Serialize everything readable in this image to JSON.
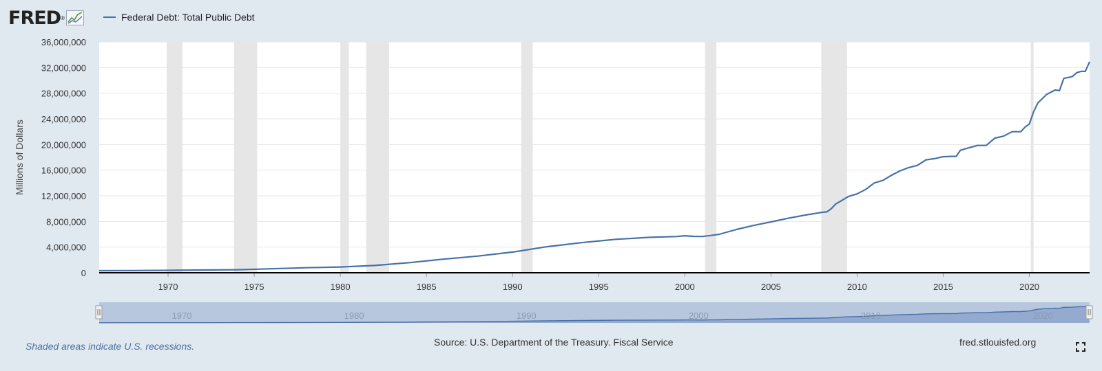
{
  "brand": {
    "logo_text": "FRED",
    "reg_mark": "®"
  },
  "legend": {
    "series_label": "Federal Debt: Total Public Debt",
    "color": "#4572a7"
  },
  "footer": {
    "footnote": "Shaded areas indicate U.S. recessions.",
    "source": "Source: U.S. Department of the Treasury. Fiscal Service",
    "site": "fred.stlouisfed.org"
  },
  "icons": {
    "logo_graph": "chart-line-icon",
    "fullscreen": "fullscreen-icon"
  },
  "chart_data": {
    "type": "line",
    "title": "",
    "xlabel": "",
    "ylabel": "Millions of Dollars",
    "xlim": [
      1966.0,
      2023.5
    ],
    "ylim": [
      0,
      36000000
    ],
    "y_ticks": [
      "0",
      "4,000,000",
      "8,000,000",
      "12,000,000",
      "16,000,000",
      "20,000,000",
      "24,000,000",
      "28,000,000",
      "32,000,000",
      "36,000,000"
    ],
    "x_ticks": [
      "1970",
      "1975",
      "1980",
      "1985",
      "1990",
      "1995",
      "2000",
      "2005",
      "2010",
      "2015",
      "2020"
    ],
    "navigator_ticks": [
      "1970",
      "1980",
      "1990",
      "2000",
      "2010",
      "2020"
    ],
    "grid": true,
    "legend_position": "top-left",
    "recessions": [
      [
        1969.92,
        1970.83
      ],
      [
        1973.83,
        1975.17
      ],
      [
        1980.0,
        1980.5
      ],
      [
        1981.5,
        1982.83
      ],
      [
        1990.5,
        1991.17
      ],
      [
        2001.17,
        2001.83
      ],
      [
        2007.92,
        2009.42
      ],
      [
        2020.08,
        2020.25
      ]
    ],
    "series": [
      {
        "name": "Federal Debt: Total Public Debt",
        "x": [
          1966.0,
          1968.0,
          1970.0,
          1972.0,
          1974.0,
          1976.0,
          1978.0,
          1980.0,
          1982.0,
          1984.0,
          1986.0,
          1988.0,
          1990.0,
          1992.0,
          1994.0,
          1996.0,
          1998.0,
          1999.5,
          2000.0,
          2000.5,
          2001.0,
          2001.5,
          2002.0,
          2003.0,
          2004.0,
          2005.0,
          2006.0,
          2007.0,
          2008.0,
          2008.25,
          2008.5,
          2008.75,
          2009.0,
          2009.5,
          2010.0,
          2010.5,
          2011.0,
          2011.5,
          2012.0,
          2012.5,
          2013.0,
          2013.5,
          2014.0,
          2014.5,
          2015.0,
          2015.5,
          2015.75,
          2016.0,
          2016.5,
          2017.0,
          2017.5,
          2018.0,
          2018.5,
          2019.0,
          2019.5,
          2019.75,
          2020.0,
          2020.25,
          2020.5,
          2021.0,
          2021.5,
          2021.75,
          2022.0,
          2022.5,
          2022.75,
          2023.0,
          2023.25,
          2023.5
        ],
        "values": [
          320000,
          345000,
          370000,
          427000,
          475000,
          620000,
          780000,
          900000,
          1140000,
          1570000,
          2120000,
          2600000,
          3230000,
          4060000,
          4690000,
          5220000,
          5530000,
          5650000,
          5770000,
          5680000,
          5660000,
          5810000,
          6000000,
          6750000,
          7380000,
          7930000,
          8500000,
          9000000,
          9440000,
          9490000,
          10000000,
          10700000,
          11100000,
          11900000,
          12300000,
          13000000,
          14000000,
          14400000,
          15200000,
          15900000,
          16400000,
          16740000,
          17600000,
          17800000,
          18100000,
          18150000,
          18150000,
          19100000,
          19500000,
          19850000,
          19850000,
          21000000,
          21300000,
          22000000,
          22000000,
          22700000,
          23200000,
          25100000,
          26500000,
          27800000,
          28500000,
          28400000,
          30300000,
          30600000,
          31200000,
          31400000,
          31400000,
          32900000
        ]
      }
    ]
  }
}
